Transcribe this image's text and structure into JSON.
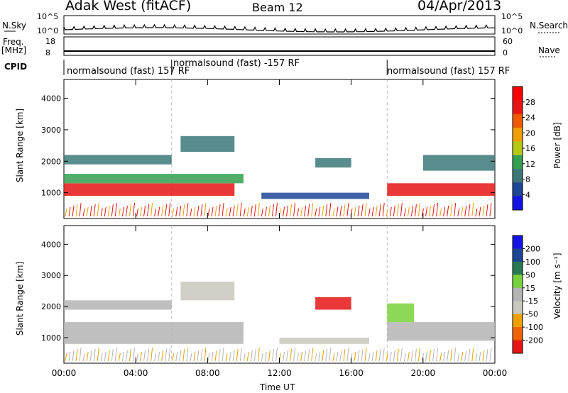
{
  "header": {
    "site": "Adak West (fitACF)",
    "beam": "Beam 12",
    "date": "04/Apr/2013"
  },
  "noise_panel": {
    "left_label": "N.Sky",
    "right_label": "N.Search",
    "ticks_left": [
      "10^5",
      "10^0"
    ],
    "ticks_right": [
      "10^5",
      "10^0"
    ]
  },
  "freq_panel": {
    "left_label_1": "Freq.",
    "left_label_2": "[MHz]",
    "right_label": "Nave",
    "ticks_left": [
      "18",
      "8"
    ],
    "ticks_right": [
      "60",
      "0"
    ]
  },
  "cpid": {
    "label": "CPID",
    "segments": [
      {
        "text": "normalsound (fast) 157 RF",
        "start_hour": 0
      },
      {
        "text": "normalsound (fast) -157 RF",
        "start_hour": 6
      },
      {
        "text": "normalsound (fast) 157 RF",
        "start_hour": 18
      }
    ]
  },
  "colors": {
    "power_scale": [
      "#1414e6",
      "#1e4696",
      "#3c7878",
      "#32a050",
      "#b4c814",
      "#f0a000",
      "#f05a00",
      "#e61414",
      "#ff0000"
    ],
    "velocity_scale": [
      "#1414e6",
      "#1e4696",
      "#287a50",
      "#78d23c",
      "#b4b4b4",
      "#c8c8be",
      "#f0a000",
      "#f06400",
      "#e61414"
    ]
  },
  "chart_data": [
    {
      "type": "heatmap",
      "name": "power",
      "xlabel": "",
      "ylabel": "Slant Range [km]",
      "xlim": [
        0,
        24
      ],
      "ylim": [
        180,
        4600
      ],
      "yticks": [
        "1000",
        "2000",
        "3000",
        "4000"
      ],
      "colorbar": {
        "label": "Power [dB]",
        "ticks": [
          "4",
          "8",
          "12",
          "16",
          "20",
          "24",
          "28"
        ],
        "range": [
          0,
          32
        ]
      },
      "bands": [
        {
          "start": 0,
          "end": 9.5,
          "range_start": 900,
          "range_end": 1300,
          "value": 27
        },
        {
          "start": 0,
          "end": 10,
          "range_start": 1300,
          "range_end": 1600,
          "value": 14
        },
        {
          "start": 0,
          "end": 6,
          "range_start": 1900,
          "range_end": 2200,
          "value": 9
        },
        {
          "start": 6.5,
          "end": 9.5,
          "range_start": 2300,
          "range_end": 2800,
          "value": 10
        },
        {
          "start": 14,
          "end": 16,
          "range_start": 1800,
          "range_end": 2100,
          "value": 10
        },
        {
          "start": 11,
          "end": 17,
          "range_start": 800,
          "range_end": 1000,
          "value": 6
        },
        {
          "start": 18,
          "end": 24,
          "range_start": 900,
          "range_end": 1300,
          "value": 25
        },
        {
          "start": 20,
          "end": 24,
          "range_start": 1700,
          "range_end": 2200,
          "value": 9
        }
      ]
    },
    {
      "type": "heatmap",
      "name": "velocity",
      "xlabel": "Time UT",
      "ylabel": "Slant Range [km]",
      "xlim": [
        0,
        24
      ],
      "ylim": [
        180,
        4600
      ],
      "xticks": [
        "00:00",
        "04:00",
        "08:00",
        "12:00",
        "16:00",
        "20:00",
        "00:00"
      ],
      "yticks": [
        "1000",
        "2000",
        "3000",
        "4000"
      ],
      "colorbar": {
        "label": "Velocity [m s⁻¹]",
        "ticks": [
          "200",
          "100",
          "50",
          "15",
          "-15",
          "-50",
          "-100",
          "-200"
        ],
        "range": [
          -250,
          250
        ]
      },
      "bands": [
        {
          "start": 0,
          "end": 10,
          "range_start": 800,
          "range_end": 1500,
          "value": 0
        },
        {
          "start": 0,
          "end": 6,
          "range_start": 1900,
          "range_end": 2200,
          "value": 0
        },
        {
          "start": 6.5,
          "end": 9.5,
          "range_start": 2200,
          "range_end": 2800,
          "value": -60
        },
        {
          "start": 14,
          "end": 16,
          "range_start": 1900,
          "range_end": 2300,
          "value": -200
        },
        {
          "start": 12,
          "end": 17,
          "range_start": 800,
          "range_end": 1000,
          "value": -60
        },
        {
          "start": 18,
          "end": 24,
          "range_start": 900,
          "range_end": 1500,
          "value": 0
        },
        {
          "start": 18,
          "end": 19.5,
          "range_start": 1500,
          "range_end": 2100,
          "value": 60
        }
      ]
    }
  ]
}
